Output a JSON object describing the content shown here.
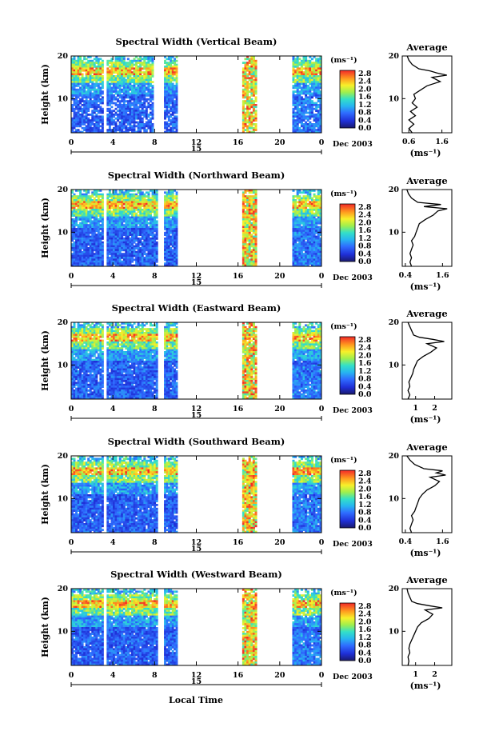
{
  "chart_data": [
    {
      "type": "heatmap",
      "title": "Spectral Width (Vertical Beam)",
      "ylabel": "Height (km)",
      "y_ticks": [
        "20",
        "10"
      ],
      "x_ticks": [
        "0",
        "4",
        "8",
        "12",
        "16",
        "20",
        "0"
      ],
      "date_marker": "15",
      "date_label": "Dec 2003",
      "colorbar_unit": "(ms⁻¹)",
      "colorbar_ticks": [
        "2.8",
        "2.4",
        "2.0",
        "1.6",
        "1.2",
        "0.8",
        "0.4",
        "0.0"
      ],
      "data_segments_hours": [
        [
          0.0,
          3.1
        ],
        [
          3.4,
          7.9
        ],
        [
          8.9,
          10.2
        ],
        [
          16.4,
          17.8
        ],
        [
          21.2,
          24.0
        ]
      ],
      "y_range_km": [
        2,
        20
      ],
      "x_range_hours": [
        0,
        24
      ],
      "average_profile": {
        "title": "Average",
        "xlabel": "(ms⁻¹)",
        "x_ticks": [
          "0.6",
          "1.6"
        ],
        "y_ticks": [
          "20",
          "10"
        ],
        "xlim": [
          0.4,
          1.9
        ],
        "height_km": [
          2,
          3,
          4,
          5,
          6,
          7,
          8,
          9,
          10,
          11,
          12,
          13,
          14,
          15,
          15.5,
          16,
          16.5,
          17,
          18,
          19,
          20
        ],
        "width_ms": [
          0.7,
          0.6,
          0.75,
          0.6,
          0.8,
          0.65,
          0.85,
          0.7,
          0.8,
          0.75,
          0.95,
          1.15,
          1.55,
          1.3,
          1.75,
          1.45,
          1.25,
          0.9,
          0.7,
          0.6,
          0.55
        ]
      }
    },
    {
      "type": "heatmap",
      "title": "Spectral Width (Northward Beam)",
      "ylabel": "Height (km)",
      "y_ticks": [
        "20",
        "10"
      ],
      "x_ticks": [
        "0",
        "4",
        "8",
        "12",
        "16",
        "20",
        "0"
      ],
      "date_marker": "15",
      "date_label": "Dec 2003",
      "colorbar_unit": "(ms⁻¹)",
      "colorbar_ticks": [
        "2.8",
        "2.4",
        "2.0",
        "1.6",
        "1.2",
        "0.8",
        "0.4",
        "0.0"
      ],
      "data_segments_hours": [
        [
          0.0,
          3.1
        ],
        [
          3.4,
          8.3
        ],
        [
          8.9,
          10.2
        ],
        [
          16.4,
          17.8
        ],
        [
          21.2,
          24.0
        ]
      ],
      "y_range_km": [
        2,
        20
      ],
      "x_range_hours": [
        0,
        24
      ],
      "average_profile": {
        "title": "Average",
        "xlabel": "(ms⁻¹)",
        "x_ticks": [
          "0.4",
          "1.6"
        ],
        "y_ticks": [
          "20",
          "10"
        ],
        "xlim": [
          0.3,
          1.9
        ],
        "height_km": [
          2,
          3,
          4,
          5,
          6,
          7,
          8,
          9,
          10,
          11,
          12,
          13,
          14,
          15,
          15.5,
          16,
          16.5,
          17,
          18,
          19,
          20
        ],
        "width_ms": [
          0.6,
          0.55,
          0.6,
          0.55,
          0.6,
          0.65,
          0.6,
          0.7,
          0.75,
          0.8,
          0.85,
          1.05,
          1.3,
          1.45,
          1.75,
          1.0,
          1.55,
          0.8,
          0.6,
          0.5,
          0.45
        ]
      }
    },
    {
      "type": "heatmap",
      "title": "Spectral Width (Eastward Beam)",
      "ylabel": "Height (km)",
      "y_ticks": [
        "20",
        "10"
      ],
      "x_ticks": [
        "0",
        "4",
        "8",
        "12",
        "16",
        "20",
        "0"
      ],
      "date_marker": "15",
      "date_label": "Dec 2003",
      "colorbar_unit": "(ms⁻¹)",
      "colorbar_ticks": [
        "2.8",
        "2.4",
        "2.0",
        "1.6",
        "1.2",
        "0.8",
        "0.4",
        "0.0"
      ],
      "data_segments_hours": [
        [
          0.0,
          3.1
        ],
        [
          3.4,
          8.3
        ],
        [
          8.9,
          10.2
        ],
        [
          16.4,
          17.8
        ],
        [
          21.2,
          24.0
        ]
      ],
      "y_range_km": [
        2,
        20
      ],
      "x_range_hours": [
        0,
        24
      ],
      "average_profile": {
        "title": "Average",
        "xlabel": "(ms⁻¹)",
        "x_ticks": [
          "1",
          "2"
        ],
        "y_ticks": [
          "20",
          "10"
        ],
        "xlim": [
          0.3,
          2.9
        ],
        "height_km": [
          2,
          3,
          4,
          5,
          6,
          7,
          8,
          9,
          10,
          11,
          12,
          13,
          14,
          15,
          15.5,
          16,
          16.5,
          17,
          18,
          19,
          20
        ],
        "width_ms": [
          0.6,
          0.7,
          0.6,
          0.7,
          0.65,
          0.75,
          0.85,
          0.9,
          1.0,
          1.1,
          1.4,
          1.8,
          2.1,
          1.6,
          2.5,
          1.9,
          1.2,
          0.9,
          0.8,
          0.7,
          0.6
        ]
      }
    },
    {
      "type": "heatmap",
      "title": "Spectral Width (Southward Beam)",
      "ylabel": "Height (km)",
      "y_ticks": [
        "20",
        "10"
      ],
      "x_ticks": [
        "0",
        "4",
        "8",
        "12",
        "16",
        "20",
        "0"
      ],
      "date_marker": "15",
      "date_label": "Dec 2003",
      "colorbar_unit": "(ms⁻¹)",
      "colorbar_ticks": [
        "2.8",
        "2.4",
        "2.0",
        "1.6",
        "1.2",
        "0.8",
        "0.4",
        "0.0"
      ],
      "data_segments_hours": [
        [
          0.0,
          3.1
        ],
        [
          3.4,
          8.3
        ],
        [
          8.9,
          10.2
        ],
        [
          16.4,
          17.8
        ],
        [
          21.2,
          24.0
        ]
      ],
      "y_range_km": [
        2,
        20
      ],
      "x_range_hours": [
        0,
        24
      ],
      "average_profile": {
        "title": "Average",
        "xlabel": "(ms⁻¹)",
        "x_ticks": [
          "0.4",
          "1.6"
        ],
        "y_ticks": [
          "20",
          "10"
        ],
        "xlim": [
          0.3,
          1.9
        ],
        "height_km": [
          2,
          3,
          4,
          5,
          6,
          7,
          8,
          9,
          10,
          11,
          12,
          13,
          14,
          15,
          15.5,
          16,
          16.5,
          17,
          18,
          19,
          20
        ],
        "width_ms": [
          0.6,
          0.55,
          0.6,
          0.65,
          0.6,
          0.7,
          0.75,
          0.8,
          0.85,
          0.95,
          1.1,
          1.35,
          1.5,
          1.2,
          1.7,
          1.4,
          1.6,
          1.0,
          0.7,
          0.55,
          0.45
        ]
      }
    },
    {
      "type": "heatmap",
      "title": "Spectral Width (Westward Beam)",
      "ylabel": "Height (km)",
      "y_ticks": [
        "20",
        "10"
      ],
      "x_ticks": [
        "0",
        "4",
        "8",
        "12",
        "16",
        "20",
        "0"
      ],
      "date_marker": "15",
      "date_label": "Dec 2003",
      "colorbar_unit": "(ms⁻¹)",
      "colorbar_ticks": [
        "2.8",
        "2.4",
        "2.0",
        "1.6",
        "1.2",
        "0.8",
        "0.4",
        "0.0"
      ],
      "data_segments_hours": [
        [
          0.0,
          3.1
        ],
        [
          3.4,
          8.3
        ],
        [
          8.9,
          10.2
        ],
        [
          16.4,
          17.8
        ],
        [
          21.2,
          24.0
        ]
      ],
      "y_range_km": [
        2,
        20
      ],
      "x_range_hours": [
        0,
        24
      ],
      "average_profile": {
        "title": "Average",
        "xlabel": "(ms⁻¹)",
        "x_ticks": [
          "1",
          "2"
        ],
        "y_ticks": [
          "20",
          "10"
        ],
        "xlim": [
          0.3,
          2.9
        ],
        "height_km": [
          2,
          3,
          4,
          5,
          6,
          7,
          8,
          9,
          10,
          11,
          12,
          13,
          14,
          15,
          15.5,
          16,
          16.5,
          17,
          18,
          19,
          20
        ],
        "width_ms": [
          0.6,
          0.65,
          0.6,
          0.7,
          0.65,
          0.7,
          0.8,
          0.9,
          1.0,
          1.1,
          1.3,
          1.7,
          1.9,
          1.5,
          2.4,
          1.7,
          1.1,
          0.8,
          0.7,
          0.6,
          0.55
        ]
      }
    }
  ],
  "figure": {
    "xlabel": "Local Time"
  }
}
